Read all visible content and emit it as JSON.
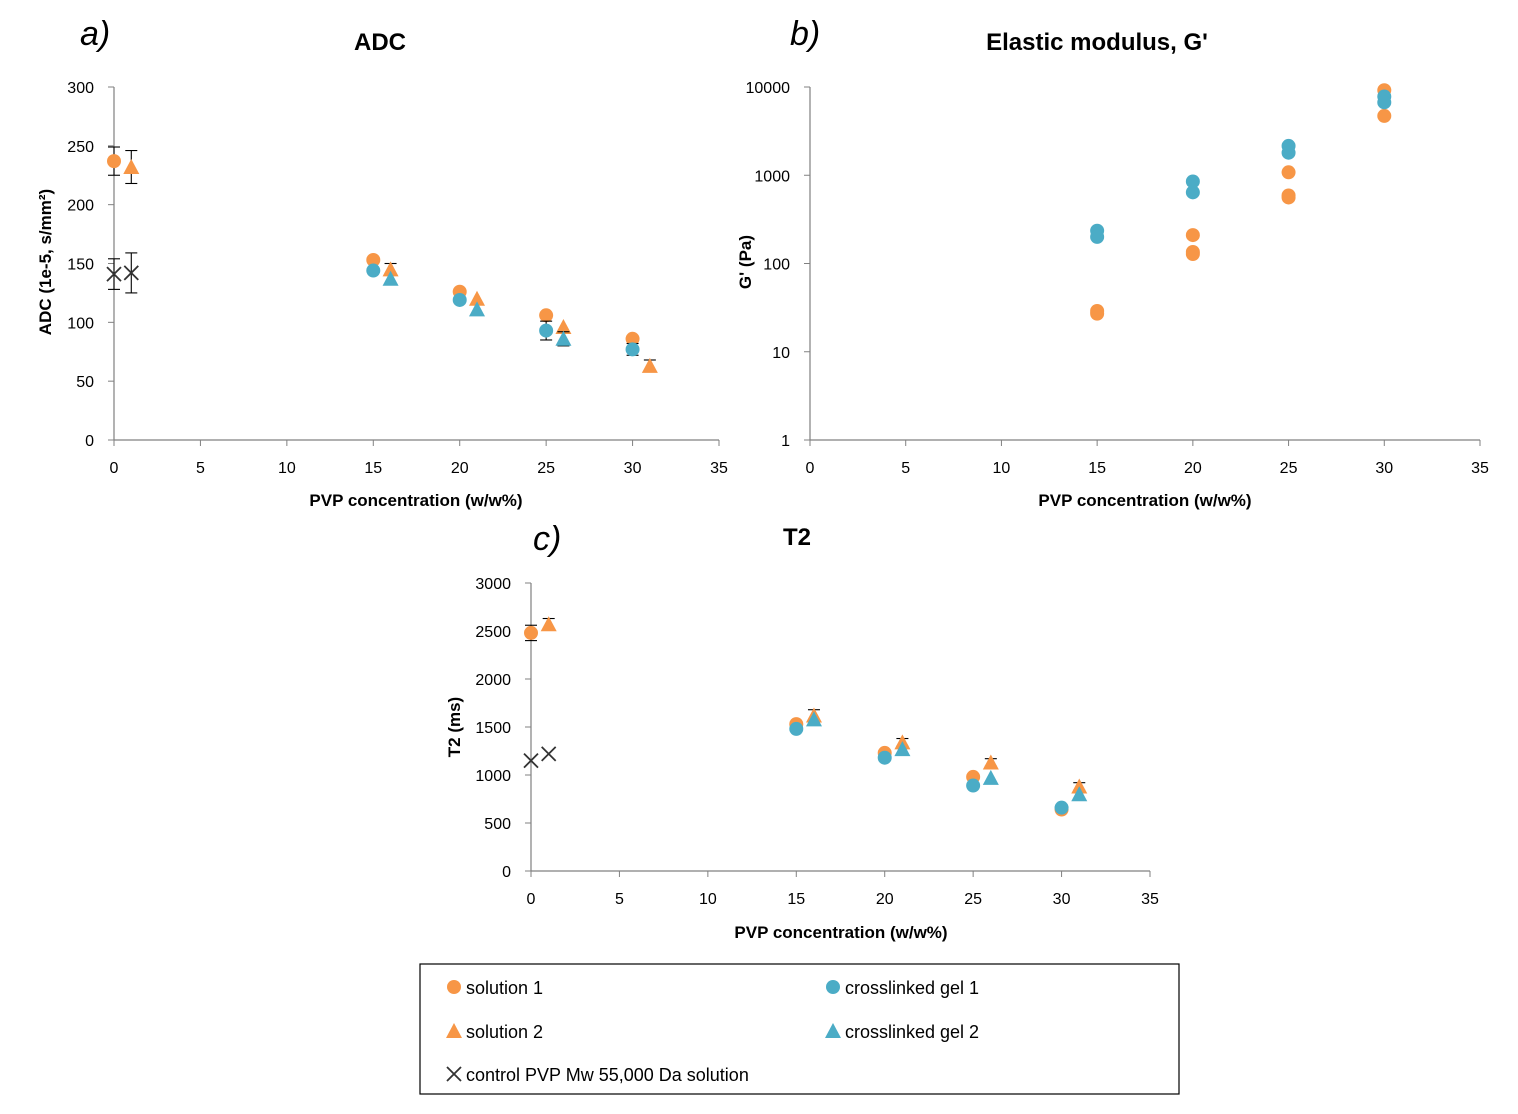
{
  "colors": {
    "orange": "#F79646",
    "blue": "#4BACC6",
    "axis": "#808080",
    "cross": "#333333"
  },
  "legend": {
    "entries": [
      {
        "label": "solution 1",
        "marker": "circle",
        "color": "#F79646"
      },
      {
        "label": "crosslinked gel 1",
        "marker": "circle",
        "color": "#4BACC6"
      },
      {
        "label": "solution 2",
        "marker": "triangle",
        "color": "#F79646"
      },
      {
        "label": "crosslinked gel 2",
        "marker": "triangle",
        "color": "#4BACC6"
      },
      {
        "label": "control PVP Mw 55,000 Da solution",
        "marker": "cross",
        "color": "#333333"
      }
    ]
  },
  "chart_data": [
    {
      "id": "adc",
      "type": "scatter",
      "panel": "a)",
      "title": "ADC",
      "xlabel": "PVP concentration (w/w%)",
      "ylabel": "ADC (1e-5, s/mm²)",
      "xlim": [
        0,
        35
      ],
      "ylim": [
        0,
        300
      ],
      "xticks": [
        "0",
        "5",
        "10",
        "15",
        "20",
        "25",
        "30",
        "35"
      ],
      "yticks": [
        "0",
        "50",
        "100",
        "150",
        "200",
        "250",
        "300"
      ],
      "yscale": "linear",
      "series": [
        {
          "name": "solution 1",
          "marker": "circle",
          "color": "#F79646",
          "points": [
            {
              "x": 0,
              "y": 237,
              "err": 12
            },
            {
              "x": 15,
              "y": 153
            },
            {
              "x": 20,
              "y": 126
            },
            {
              "x": 25,
              "y": 106
            },
            {
              "x": 30,
              "y": 86
            }
          ]
        },
        {
          "name": "crosslinked gel 1",
          "marker": "circle",
          "color": "#4BACC6",
          "points": [
            {
              "x": 15,
              "y": 144
            },
            {
              "x": 20,
              "y": 119
            },
            {
              "x": 25,
              "y": 93,
              "err": 8
            },
            {
              "x": 30,
              "y": 77,
              "err": 5
            }
          ]
        },
        {
          "name": "solution 2",
          "marker": "triangle",
          "color": "#F79646",
          "points": [
            {
              "x": 1,
              "y": 232,
              "err": 14
            },
            {
              "x": 16,
              "y": 145,
              "err": 5
            },
            {
              "x": 21,
              "y": 120
            },
            {
              "x": 26,
              "y": 96
            },
            {
              "x": 31,
              "y": 63,
              "err": 5
            }
          ]
        },
        {
          "name": "crosslinked gel 2",
          "marker": "triangle",
          "color": "#4BACC6",
          "points": [
            {
              "x": 16,
              "y": 137
            },
            {
              "x": 21,
              "y": 111
            },
            {
              "x": 26,
              "y": 86,
              "err": 6
            }
          ]
        },
        {
          "name": "control PVP Mw 55,000 Da solution",
          "marker": "cross",
          "color": "#333333",
          "points": [
            {
              "x": 0,
              "y": 141,
              "err": 13
            },
            {
              "x": 1,
              "y": 142,
              "err": 17
            }
          ]
        }
      ]
    },
    {
      "id": "gprime",
      "type": "scatter",
      "panel": "b)",
      "title": "Elastic modulus, G'",
      "xlabel": "PVP concentration (w/w%)",
      "ylabel": "G' (Pa)",
      "xlim": [
        0,
        35
      ],
      "ylim": [
        1,
        10000
      ],
      "xticks": [
        "0",
        "5",
        "10",
        "15",
        "20",
        "25",
        "30",
        "35"
      ],
      "yticks": [
        "1",
        "10",
        "100",
        "1000",
        "10000"
      ],
      "yscale": "log",
      "series": [
        {
          "name": "solution 1",
          "marker": "circle",
          "color": "#F79646",
          "points": [
            {
              "x": 15,
              "y": 29
            },
            {
              "x": 15,
              "y": 27
            },
            {
              "x": 20,
              "y": 210
            },
            {
              "x": 20,
              "y": 135
            },
            {
              "x": 20,
              "y": 128
            },
            {
              "x": 25,
              "y": 1080
            },
            {
              "x": 25,
              "y": 590
            },
            {
              "x": 25,
              "y": 560
            },
            {
              "x": 30,
              "y": 9200
            },
            {
              "x": 30,
              "y": 4700
            }
          ]
        },
        {
          "name": "crosslinked gel 1",
          "marker": "circle",
          "color": "#4BACC6",
          "points": [
            {
              "x": 15,
              "y": 235
            },
            {
              "x": 15,
              "y": 200
            },
            {
              "x": 20,
              "y": 850
            },
            {
              "x": 20,
              "y": 640
            },
            {
              "x": 25,
              "y": 2150
            },
            {
              "x": 25,
              "y": 1800
            },
            {
              "x": 30,
              "y": 7800
            },
            {
              "x": 30,
              "y": 6700
            }
          ]
        }
      ]
    },
    {
      "id": "t2",
      "type": "scatter",
      "panel": "c)",
      "title": "T2",
      "xlabel": "PVP concentration (w/w%)",
      "ylabel": "T2 (ms)",
      "xlim": [
        0,
        35
      ],
      "ylim": [
        0,
        3000
      ],
      "xticks": [
        "0",
        "5",
        "10",
        "15",
        "20",
        "25",
        "30",
        "35"
      ],
      "yticks": [
        "0",
        "500",
        "1000",
        "1500",
        "2000",
        "2500",
        "3000"
      ],
      "yscale": "linear",
      "series": [
        {
          "name": "solution 1",
          "marker": "circle",
          "color": "#F79646",
          "points": [
            {
              "x": 0,
              "y": 2480,
              "err": 80
            },
            {
              "x": 15,
              "y": 1530
            },
            {
              "x": 20,
              "y": 1230
            },
            {
              "x": 25,
              "y": 980
            },
            {
              "x": 30,
              "y": 640
            }
          ]
        },
        {
          "name": "crosslinked gel 1",
          "marker": "circle",
          "color": "#4BACC6",
          "points": [
            {
              "x": 15,
              "y": 1480
            },
            {
              "x": 20,
              "y": 1180
            },
            {
              "x": 25,
              "y": 890
            },
            {
              "x": 30,
              "y": 660
            }
          ]
        },
        {
          "name": "solution 2",
          "marker": "triangle",
          "color": "#F79646",
          "points": [
            {
              "x": 1,
              "y": 2570,
              "err": 60
            },
            {
              "x": 16,
              "y": 1620,
              "err": 60
            },
            {
              "x": 21,
              "y": 1340,
              "err": 40
            },
            {
              "x": 26,
              "y": 1130,
              "err": 40
            },
            {
              "x": 31,
              "y": 880,
              "err": 40
            }
          ]
        },
        {
          "name": "crosslinked gel 2",
          "marker": "triangle",
          "color": "#4BACC6",
          "points": [
            {
              "x": 16,
              "y": 1580
            },
            {
              "x": 21,
              "y": 1270
            },
            {
              "x": 26,
              "y": 970
            },
            {
              "x": 31,
              "y": 800
            }
          ]
        },
        {
          "name": "control PVP Mw 55,000 Da solution",
          "marker": "cross",
          "color": "#333333",
          "points": [
            {
              "x": 0,
              "y": 1150
            },
            {
              "x": 1,
              "y": 1220
            }
          ]
        }
      ]
    }
  ]
}
